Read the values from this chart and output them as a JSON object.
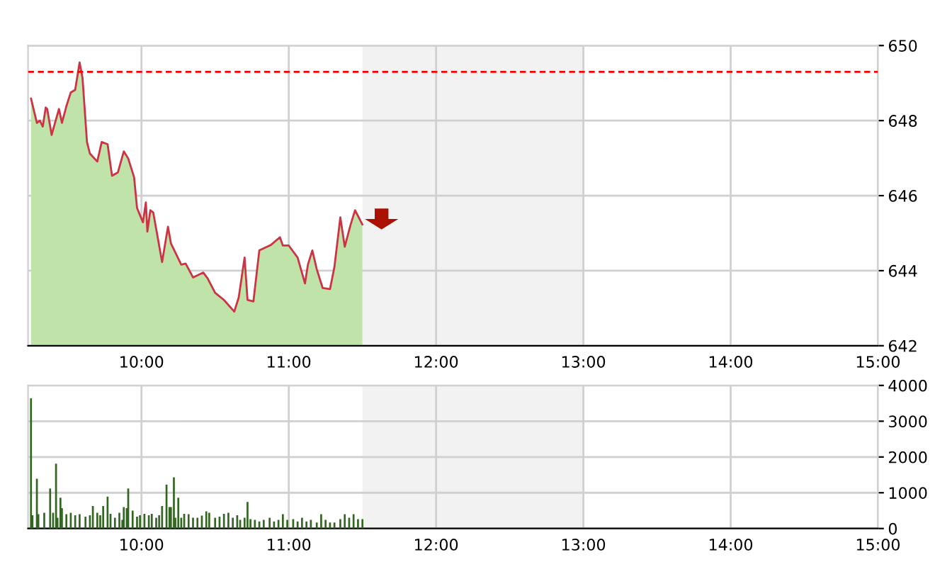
{
  "chart_data": [
    {
      "type": "area",
      "x": [
        9.25,
        9.29,
        9.31,
        9.33,
        9.35,
        9.36,
        9.39,
        9.44,
        9.46,
        9.49,
        9.52,
        9.55,
        9.58,
        9.6,
        9.63,
        9.65,
        9.7,
        9.73,
        9.77,
        9.8,
        9.84,
        9.88,
        9.91,
        9.95,
        9.97,
        10.01,
        10.03,
        10.04,
        10.06,
        10.08,
        10.14,
        10.18,
        10.2,
        10.27,
        10.3,
        10.35,
        10.42,
        10.45,
        10.5,
        10.56,
        10.63,
        10.66,
        10.7,
        10.72,
        10.76,
        10.8,
        10.88,
        10.94,
        10.96,
        11.0,
        11.06,
        11.11,
        11.13,
        11.16,
        11.19,
        11.23,
        11.28,
        11.31,
        11.35,
        11.38,
        11.42,
        11.45,
        11.5
      ],
      "series": [
        {
          "color": "#bfe3a8",
          "values": [
            648.59,
            647.94,
            648.0,
            647.84,
            648.35,
            648.31,
            647.62,
            648.31,
            647.94,
            648.38,
            648.75,
            648.82,
            649.55,
            649.13,
            647.43,
            647.12,
            646.91,
            647.43,
            647.37,
            646.53,
            646.62,
            647.18,
            646.99,
            646.49,
            645.67,
            645.29,
            645.82,
            645.04,
            645.61,
            645.55,
            644.23,
            645.17,
            644.73,
            644.16,
            644.19,
            643.82,
            643.95,
            643.79,
            643.41,
            643.22,
            642.91,
            643.28,
            644.35,
            643.22,
            643.18,
            644.54,
            644.69,
            644.89,
            644.67,
            644.67,
            644.35,
            643.66,
            644.16,
            644.54,
            644.04,
            643.54,
            643.51,
            644.1,
            645.42,
            644.64,
            645.23,
            645.61,
            645.23
          ]
        },
        {
          "type": "line",
          "color": "#cc3344",
          "values": [
            648.59,
            647.94,
            648.0,
            647.84,
            648.35,
            648.31,
            647.62,
            648.31,
            647.94,
            648.38,
            648.75,
            648.82,
            649.55,
            649.13,
            647.43,
            647.12,
            646.91,
            647.43,
            647.37,
            646.53,
            646.62,
            647.18,
            646.99,
            646.49,
            645.67,
            645.29,
            645.82,
            645.04,
            645.61,
            645.55,
            644.23,
            645.17,
            644.73,
            644.16,
            644.19,
            643.82,
            643.95,
            643.79,
            643.41,
            643.22,
            642.91,
            643.28,
            644.35,
            643.22,
            643.18,
            644.54,
            644.69,
            644.89,
            644.67,
            644.67,
            644.35,
            643.66,
            644.16,
            644.54,
            644.04,
            643.54,
            643.51,
            644.1,
            645.42,
            644.64,
            645.23,
            645.61,
            645.23
          ]
        }
      ],
      "xlim": [
        9.23,
        15
      ],
      "xticks": [
        {
          "value": 10,
          "label": "10:00"
        },
        {
          "value": 11,
          "label": "11:00"
        },
        {
          "value": 12,
          "label": "12:00"
        },
        {
          "value": 13,
          "label": "13:00"
        },
        {
          "value": 14,
          "label": "14:00"
        },
        {
          "value": 15,
          "label": "15:00"
        }
      ],
      "ylim": [
        642,
        650
      ],
      "yticks": [
        642,
        644,
        646,
        648,
        650
      ],
      "grid": true,
      "ref_lines": [
        {
          "axis": "y",
          "value": 649.3,
          "color": "#ff0000",
          "line_style": "dashed"
        }
      ],
      "bands": [
        {
          "axis": "x",
          "from": 11.5,
          "to": 13,
          "color": "#f2f2f2"
        }
      ]
    },
    {
      "type": "bar",
      "x": [
        9.25,
        9.26,
        9.29,
        9.3,
        9.34,
        9.38,
        9.4,
        9.42,
        9.43,
        9.45,
        9.46,
        9.49,
        9.52,
        9.55,
        9.58,
        9.62,
        9.65,
        9.67,
        9.7,
        9.72,
        9.74,
        9.77,
        9.79,
        9.82,
        9.85,
        9.87,
        9.88,
        9.9,
        9.91,
        9.94,
        9.97,
        9.99,
        10.02,
        10.05,
        10.07,
        10.1,
        10.12,
        10.14,
        10.17,
        10.19,
        10.2,
        10.22,
        10.23,
        10.25,
        10.27,
        10.29,
        10.32,
        10.35,
        10.38,
        10.41,
        10.44,
        10.46,
        10.5,
        10.53,
        10.56,
        10.59,
        10.62,
        10.65,
        10.67,
        10.7,
        10.72,
        10.74,
        10.77,
        10.8,
        10.83,
        10.87,
        10.9,
        10.93,
        10.96,
        10.99,
        11.03,
        11.06,
        11.09,
        11.12,
        11.15,
        11.19,
        11.22,
        11.25,
        11.28,
        11.31,
        11.35,
        11.38,
        11.41,
        11.44,
        11.47,
        11.5
      ],
      "series": [
        {
          "color": "#336622",
          "values": [
            3640,
            370,
            1390,
            400,
            440,
            1120,
            440,
            1810,
            300,
            860,
            570,
            400,
            440,
            370,
            400,
            330,
            370,
            630,
            440,
            370,
            630,
            890,
            410,
            300,
            440,
            240,
            600,
            570,
            1120,
            500,
            330,
            370,
            410,
            370,
            410,
            300,
            370,
            630,
            1230,
            600,
            600,
            1430,
            300,
            860,
            300,
            410,
            400,
            300,
            300,
            360,
            480,
            440,
            300,
            330,
            410,
            440,
            300,
            370,
            240,
            300,
            740,
            260,
            240,
            200,
            240,
            300,
            200,
            240,
            400,
            240,
            260,
            200,
            300,
            200,
            240,
            170,
            400,
            240,
            170,
            170,
            260,
            400,
            300,
            400,
            260,
            260
          ]
        }
      ],
      "xlim": [
        9.23,
        15
      ],
      "xticks": [
        {
          "value": 10,
          "label": "10:00"
        },
        {
          "value": 11,
          "label": "11:00"
        },
        {
          "value": 12,
          "label": "12:00"
        },
        {
          "value": 13,
          "label": "13:00"
        },
        {
          "value": 14,
          "label": "14:00"
        },
        {
          "value": 15,
          "label": "15:00"
        }
      ],
      "ylim": [
        0,
        4000
      ],
      "yticks": [
        0,
        1000,
        2000,
        3000,
        4000
      ],
      "grid": true,
      "bands": [
        {
          "axis": "x",
          "from": 11.5,
          "to": 13,
          "color": "#f2f2f2"
        }
      ]
    }
  ]
}
